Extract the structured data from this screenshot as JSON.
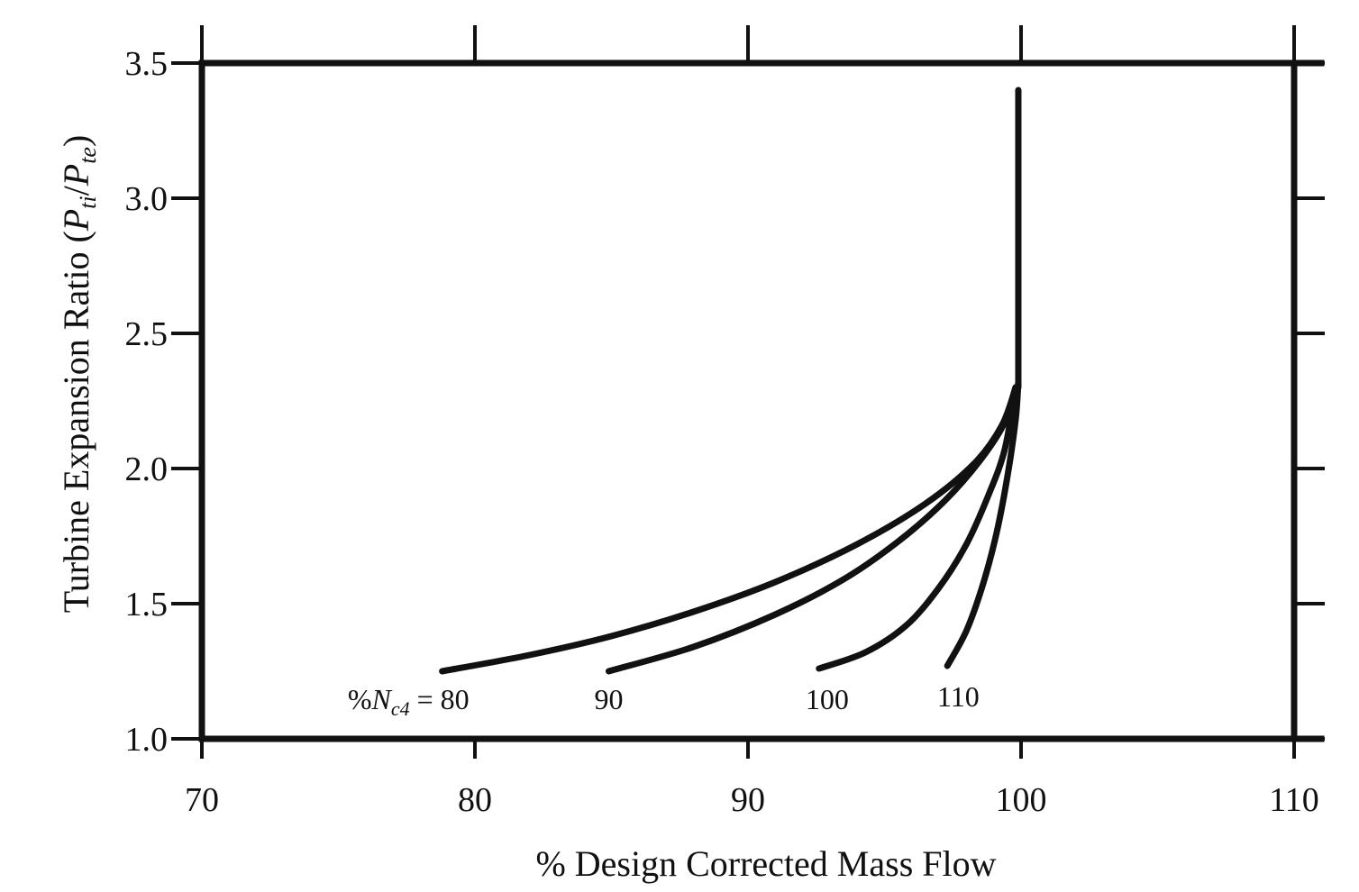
{
  "chart_data": {
    "type": "line",
    "xlabel": "% Design Corrected Mass Flow",
    "ylabel": "Turbine Expansion Ratio (Ptt/Pte)",
    "ylabel_parts": {
      "prefix": "Turbine Expansion Ratio (",
      "p1": "P",
      "s1": "ti",
      "slash": "/",
      "p2": "P",
      "s2": "te",
      "suffix": ")"
    },
    "xlim": [
      70,
      110
    ],
    "ylim": [
      1.0,
      3.5
    ],
    "x_ticks": [
      70,
      80,
      90,
      100,
      110
    ],
    "x_tick_labels": [
      "70",
      "80",
      "90",
      "100",
      "110"
    ],
    "y_ticks": [
      1.0,
      1.5,
      2.0,
      2.5,
      3.0,
      3.5
    ],
    "y_tick_labels": [
      "1.0",
      "1.5",
      "2.0",
      "2.5",
      "3.0",
      "3.5"
    ],
    "grid": false,
    "frame": "box",
    "series": [
      {
        "name": "80",
        "points": [
          [
            78.8,
            1.25
          ],
          [
            82.0,
            1.31
          ],
          [
            85.0,
            1.38
          ],
          [
            88.0,
            1.47
          ],
          [
            91.0,
            1.58
          ],
          [
            94.0,
            1.72
          ],
          [
            96.5,
            1.87
          ],
          [
            98.3,
            2.02
          ],
          [
            99.3,
            2.16
          ],
          [
            99.8,
            2.3
          ]
        ]
      },
      {
        "name": "90",
        "points": [
          [
            84.9,
            1.25
          ],
          [
            88.0,
            1.34
          ],
          [
            91.0,
            1.46
          ],
          [
            93.5,
            1.59
          ],
          [
            95.5,
            1.73
          ],
          [
            97.2,
            1.88
          ],
          [
            98.5,
            2.03
          ],
          [
            99.4,
            2.17
          ],
          [
            99.8,
            2.3
          ]
        ]
      },
      {
        "name": "100",
        "points": [
          [
            92.6,
            1.26
          ],
          [
            94.3,
            1.32
          ],
          [
            95.8,
            1.42
          ],
          [
            97.0,
            1.56
          ],
          [
            98.0,
            1.72
          ],
          [
            98.8,
            1.9
          ],
          [
            99.4,
            2.07
          ],
          [
            99.8,
            2.3
          ]
        ]
      },
      {
        "name": "110",
        "points": [
          [
            97.3,
            1.27
          ],
          [
            98.0,
            1.4
          ],
          [
            98.6,
            1.57
          ],
          [
            99.1,
            1.76
          ],
          [
            99.5,
            1.97
          ],
          [
            99.8,
            2.18
          ],
          [
            99.9,
            2.32
          ]
        ]
      },
      {
        "name": "",
        "points": [
          [
            99.9,
            2.3
          ],
          [
            99.9,
            3.4
          ]
        ]
      }
    ],
    "curve_labels": [
      {
        "series": "80",
        "prefix": "%",
        "symbol": "N",
        "subscript": "c4",
        "suffix": " = 80",
        "x": 79.5,
        "y": 1.11
      },
      {
        "series": "90",
        "text": "90",
        "x": 84.9,
        "y": 1.11
      },
      {
        "series": "100",
        "text": "100",
        "x": 92.9,
        "y": 1.11
      },
      {
        "series": "110",
        "text": "110",
        "x": 97.7,
        "y": 1.12
      }
    ]
  }
}
